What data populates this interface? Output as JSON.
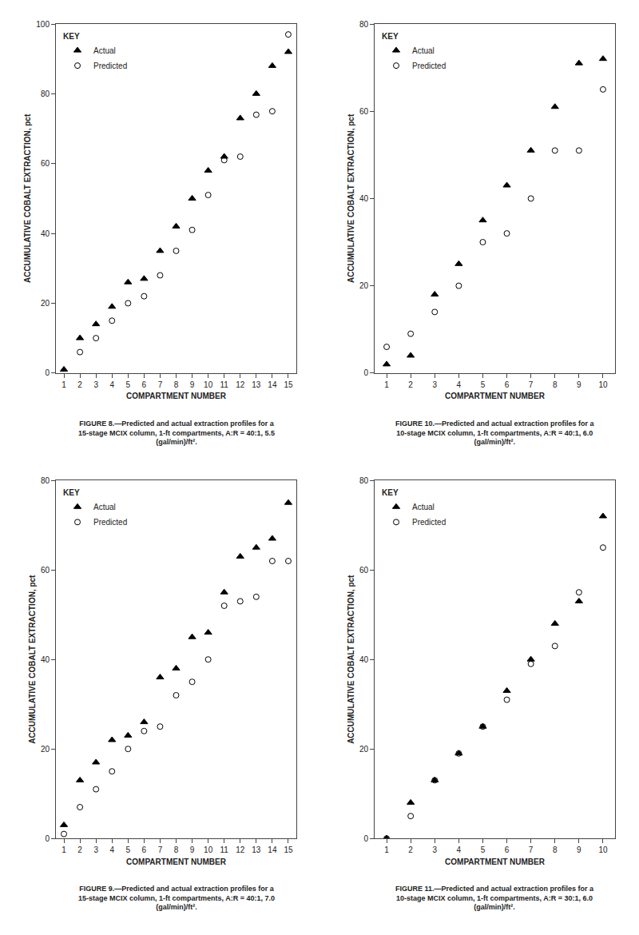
{
  "chart_data": [
    {
      "type": "scatter",
      "xlabel": "COMPARTMENT NUMBER",
      "ylabel": "ACCUMULATIVE COBALT EXTRACTION, pct",
      "series": [
        {
          "name": "Actual",
          "color": "#000000",
          "marker": "triangle",
          "x": [
            1,
            2,
            3,
            4,
            5,
            6,
            7,
            8,
            9,
            10,
            11,
            12,
            13,
            14,
            15
          ],
          "values": [
            1,
            10,
            14,
            19,
            26,
            27,
            35,
            42,
            50,
            58,
            62,
            73,
            80,
            88,
            92
          ]
        },
        {
          "name": "Predicted",
          "color": "#000000",
          "marker": "open circle",
          "x": [
            2,
            3,
            4,
            5,
            6,
            7,
            8,
            9,
            10,
            11,
            12,
            13,
            14,
            15
          ],
          "values": [
            6,
            10,
            15,
            20,
            22,
            28,
            35,
            41,
            51,
            61,
            62,
            74,
            75,
            97
          ]
        }
      ],
      "xlim": [
        0.5,
        15.5
      ],
      "ylim": [
        0,
        100
      ],
      "xticks": [
        1,
        2,
        3,
        4,
        5,
        6,
        7,
        8,
        9,
        10,
        11,
        12,
        13,
        14,
        15
      ],
      "yticks": [
        0,
        20,
        40,
        60,
        80,
        100
      ],
      "grid": false,
      "legend": "upper left",
      "legend_title": "KEY",
      "annotations": [
        "FIGURE 8.—Predicted and actual extraction profiles for a\n15-stage MCIX column, 1-ft compartments, A:R = 40:1, 5.5\n(gal/min)/ft²."
      ]
    },
    {
      "type": "scatter",
      "xlabel": "COMPARTMENT NUMBER",
      "ylabel": "ACCUMULATIVE COBALT EXTRACTION, pct",
      "series": [
        {
          "name": "Actual",
          "color": "#000000",
          "marker": "triangle",
          "x": [
            1,
            2,
            3,
            4,
            5,
            6,
            7,
            8,
            9,
            10
          ],
          "values": [
            2,
            4,
            18,
            25,
            35,
            43,
            51,
            61,
            71,
            72
          ]
        },
        {
          "name": "Predicted",
          "color": "#000000",
          "marker": "open circle",
          "x": [
            1,
            2,
            3,
            4,
            5,
            6,
            7,
            8,
            9,
            10
          ],
          "values": [
            6,
            9,
            14,
            20,
            30,
            32,
            40,
            51,
            51,
            65
          ]
        }
      ],
      "xlim": [
        0.5,
        10.5
      ],
      "ylim": [
        0,
        80
      ],
      "xticks": [
        1,
        2,
        3,
        4,
        5,
        6,
        7,
        8,
        9,
        10
      ],
      "yticks": [
        0,
        20,
        40,
        60,
        80
      ],
      "grid": false,
      "legend": "upper left",
      "legend_title": "KEY",
      "annotations": [
        "FIGURE 10.—Predicted and actual extraction profiles for a\n10-stage MCIX column, 1-ft compartments, A:R = 40:1, 6.0\n(gal/min)/ft²."
      ]
    },
    {
      "type": "scatter",
      "xlabel": "COMPARTMENT NUMBER",
      "ylabel": "ACCUMULATIVE COBALT EXTRACTION, pct",
      "series": [
        {
          "name": "Actual",
          "color": "#000000",
          "marker": "triangle",
          "x": [
            1,
            2,
            3,
            4,
            5,
            6,
            7,
            8,
            9,
            10,
            11,
            12,
            13,
            14,
            15
          ],
          "values": [
            3,
            13,
            17,
            22,
            23,
            26,
            36,
            38,
            45,
            46,
            55,
            63,
            65,
            67,
            75
          ]
        },
        {
          "name": "Predicted",
          "color": "#000000",
          "marker": "open circle",
          "x": [
            1,
            2,
            3,
            4,
            5,
            6,
            7,
            8,
            9,
            10,
            11,
            12,
            13,
            14,
            15
          ],
          "values": [
            1,
            7,
            11,
            15,
            20,
            24,
            25,
            32,
            35,
            40,
            52,
            53,
            54,
            62,
            62
          ]
        }
      ],
      "xlim": [
        0.5,
        15.5
      ],
      "ylim": [
        0,
        80
      ],
      "xticks": [
        1,
        2,
        3,
        4,
        5,
        6,
        7,
        8,
        9,
        10,
        11,
        12,
        13,
        14,
        15
      ],
      "yticks": [
        0,
        20,
        40,
        60,
        80
      ],
      "grid": false,
      "legend": "upper left",
      "legend_title": "KEY",
      "annotations": [
        "FIGURE 9.—Predicted and actual extraction profiles for a\n15-stage MCIX column, 1-ft compartments, A:R = 40:1, 7.0\n(gal/min)/ft²."
      ]
    },
    {
      "type": "scatter",
      "xlabel": "COMPARTMENT NUMBER",
      "ylabel": "ACCUMULATIVE COBALT EXTRACTION, pct",
      "series": [
        {
          "name": "Actual",
          "color": "#000000",
          "marker": "triangle",
          "x": [
            1,
            2,
            3,
            4,
            5,
            6,
            7,
            8,
            9,
            10
          ],
          "values": [
            0,
            8,
            13,
            19,
            25,
            33,
            40,
            48,
            53,
            72
          ]
        },
        {
          "name": "Predicted",
          "color": "#000000",
          "marker": "open circle",
          "x": [
            1,
            2,
            3,
            4,
            5,
            6,
            7,
            8,
            9,
            10
          ],
          "values": [
            0,
            5,
            13,
            19,
            25,
            31,
            39,
            43,
            55,
            65
          ]
        }
      ],
      "xlim": [
        0.5,
        10.5
      ],
      "ylim": [
        0,
        80
      ],
      "xticks": [
        1,
        2,
        3,
        4,
        5,
        6,
        7,
        8,
        9,
        10
      ],
      "yticks": [
        0,
        20,
        40,
        60,
        80
      ],
      "grid": false,
      "legend": "upper left",
      "legend_title": "KEY",
      "annotations": [
        "FIGURE 11.—Predicted and actual extraction profiles for a\n10-stage MCIX column, 1-ft compartments, A:R = 30:1, 6.0\n(gal/min)/ft²."
      ]
    }
  ]
}
